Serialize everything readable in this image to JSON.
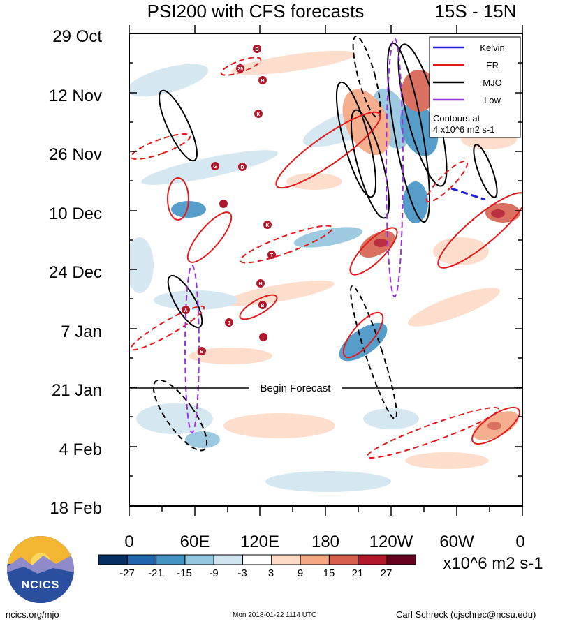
{
  "chart_data": {
    "type": "heatmap",
    "title": "PSI200 with CFS forecasts",
    "region": "15S - 15N",
    "y_tick_labels": [
      "29 Oct",
      "12 Nov",
      "26 Nov",
      "10 Dec",
      "24 Dec",
      "7 Jan",
      "21 Jan",
      "4 Feb",
      "18 Feb"
    ],
    "x_tick_labels": [
      "0",
      "60E",
      "120E",
      "180",
      "120W",
      "60W",
      "0"
    ],
    "forecast_label": "Begin Forecast",
    "forecast_start": "21 Jan",
    "colorbar": {
      "tick_labels": [
        "-27",
        "-21",
        "-15",
        "-9",
        "-3",
        "3",
        "9",
        "15",
        "21",
        "27"
      ],
      "colors": [
        "#053061",
        "#2166ac",
        "#4393c3",
        "#92c5de",
        "#d1e5f0",
        "#ffffff",
        "#fddbc7",
        "#f4a582",
        "#d6604d",
        "#b2182b",
        "#67001f"
      ],
      "units": "x10^6 m2 s-1"
    },
    "legend": {
      "entries": [
        {
          "name": "Kelvin",
          "color": "#1f1fd8"
        },
        {
          "name": "ER",
          "color": "#e31a1c"
        },
        {
          "name": "MJO",
          "color": "#000000"
        },
        {
          "name": "Low",
          "color": "#9b30e0"
        }
      ],
      "note_line1": "Contours at",
      "note_line2": "4 x10^6 m2 s-1"
    },
    "storm_labels": [
      "D",
      "29",
      "H",
      "K",
      "G",
      "D",
      "K",
      "T",
      "H",
      "B",
      "A",
      "J",
      "B"
    ]
  },
  "footer": {
    "url": "ncics.org/mjo",
    "timestamp": "Mon 2018-01-22 1114 UTC",
    "author": "Carl Schreck (cjschrec@ncsu.edu)"
  },
  "logo": {
    "text": "NCICS"
  }
}
